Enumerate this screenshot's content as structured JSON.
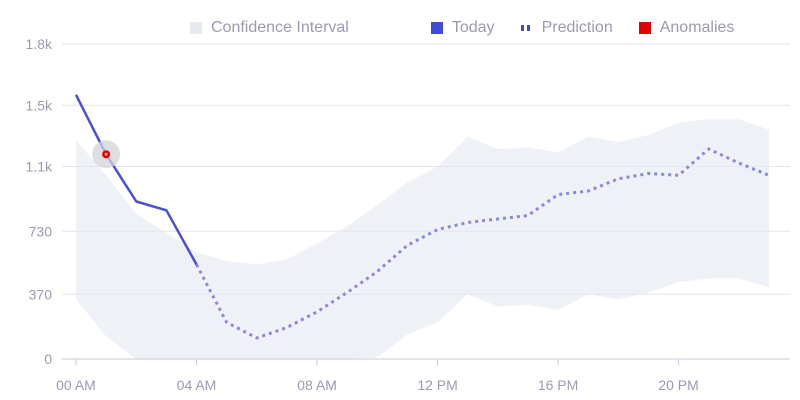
{
  "chart_data": {
    "type": "line",
    "title": "",
    "xlabel": "",
    "ylabel": "",
    "ylim": [
      0,
      1800
    ],
    "xlim": [
      0,
      23.2
    ],
    "y_ticks": [
      {
        "value": 0,
        "label": "0"
      },
      {
        "value": 370,
        "label": "370"
      },
      {
        "value": 730,
        "label": "730"
      },
      {
        "value": 1100,
        "label": "1.1k"
      },
      {
        "value": 1450,
        "label": "1.5k"
      },
      {
        "value": 1800,
        "label": "1.8k"
      }
    ],
    "x_ticks": [
      {
        "value": 0,
        "label": "00 AM"
      },
      {
        "value": 4,
        "label": "04 AM"
      },
      {
        "value": 8,
        "label": "08 AM"
      },
      {
        "value": 12,
        "label": "12 PM"
      },
      {
        "value": 16,
        "label": "16 PM"
      },
      {
        "value": 20,
        "label": "20 PM"
      }
    ],
    "legend": [
      {
        "name": "Confidence Interval",
        "color": "#e8ecf1",
        "style": "square"
      },
      {
        "name": "Today",
        "color": "#3f4ad8",
        "style": "square"
      },
      {
        "name": "Prediction",
        "color": "#3f4ad8",
        "style": "dotted"
      },
      {
        "name": "Anomalies",
        "color": "#e00000",
        "style": "square"
      }
    ],
    "series": [
      {
        "name": "Today",
        "color": "#4a4fd8",
        "x": [
          0,
          1,
          2,
          3,
          4
        ],
        "values": [
          1510,
          1170,
          900,
          850,
          540
        ]
      },
      {
        "name": "Prediction",
        "color": "#8989dc",
        "x": [
          4,
          5,
          6,
          7,
          8,
          9,
          10,
          11,
          12,
          13,
          14,
          15,
          16,
          17,
          18,
          19,
          20,
          21,
          22,
          23
        ],
        "values": [
          540,
          210,
          120,
          180,
          270,
          380,
          500,
          650,
          740,
          780,
          800,
          820,
          940,
          960,
          1030,
          1060,
          1050,
          1200,
          1120,
          1050
        ]
      },
      {
        "name": "Confidence Interval",
        "color": "#e8ecf1",
        "x": [
          0,
          1,
          2,
          3,
          4,
          5,
          6,
          7,
          8,
          9,
          10,
          11,
          12,
          13,
          14,
          15,
          16,
          17,
          18,
          19,
          20,
          21,
          22,
          23
        ],
        "upper": [
          1250,
          1050,
          830,
          720,
          610,
          560,
          540,
          570,
          660,
          760,
          880,
          1010,
          1100,
          1270,
          1200,
          1210,
          1180,
          1270,
          1240,
          1280,
          1350,
          1370,
          1370,
          1310
        ],
        "lower": [
          340,
          130,
          0,
          0,
          0,
          0,
          0,
          0,
          0,
          0,
          10,
          140,
          210,
          370,
          300,
          310,
          280,
          370,
          340,
          380,
          440,
          460,
          460,
          410
        ]
      }
    ],
    "anomalies": [
      {
        "x": 1,
        "value": 1170,
        "color": "#e00000"
      }
    ]
  }
}
